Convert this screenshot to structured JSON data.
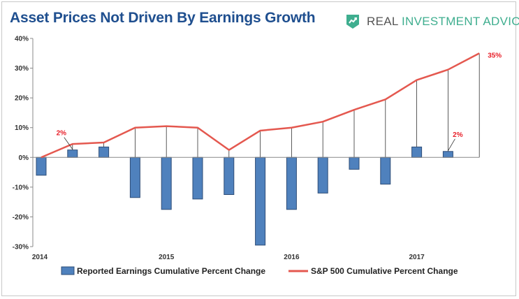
{
  "title": "Asset Prices Not Driven By Earnings Growth",
  "brand": {
    "icon": "real-investment-advice-logo",
    "part1": "REAL",
    "part2": "INVESTMENT ADVICE",
    "colors": {
      "gray": "#555555",
      "green": "#3fae8f"
    }
  },
  "chart_data": {
    "type": "bar+line",
    "title": "Asset Prices Not Driven By Earnings Growth",
    "xlabel": "",
    "ylabel": "",
    "ylim": [
      -30,
      40
    ],
    "yticks": [
      40,
      30,
      20,
      10,
      0,
      -10,
      -20,
      -30
    ],
    "ytick_labels": [
      "40%",
      "30%",
      "20%",
      "10%",
      "0%",
      "-10%",
      "-20%",
      "-30%"
    ],
    "xtick_labels": [
      "2014",
      "2015",
      "2016",
      "2017"
    ],
    "xtick_index": [
      0,
      4,
      8,
      12
    ],
    "grid": false,
    "legend_position": "bottom",
    "series": [
      {
        "name": "Reported Earnings Cumulative Percent Change",
        "type": "bar",
        "color": "#4f81bd",
        "values": [
          -6,
          2.5,
          3.5,
          -13.5,
          -17.5,
          -14,
          -12.5,
          -29.5,
          -17.5,
          -12,
          -4,
          -9,
          3.5,
          2,
          null
        ]
      },
      {
        "name": "S&P 500 Cumulative Percent Change",
        "type": "line",
        "color": "#e4584f",
        "values": [
          0,
          4.5,
          5,
          10,
          10.5,
          10,
          2.5,
          9,
          10,
          12,
          16,
          19.5,
          26,
          29.5,
          35
        ]
      }
    ],
    "annotations": [
      {
        "text": "2%",
        "series": "Reported Earnings Cumulative Percent Change",
        "index": 1
      },
      {
        "text": "2%",
        "series": "Reported Earnings Cumulative Percent Change",
        "index": 13
      },
      {
        "text": "35%",
        "series": "S&P 500 Cumulative Percent Change",
        "index": 14
      }
    ]
  }
}
